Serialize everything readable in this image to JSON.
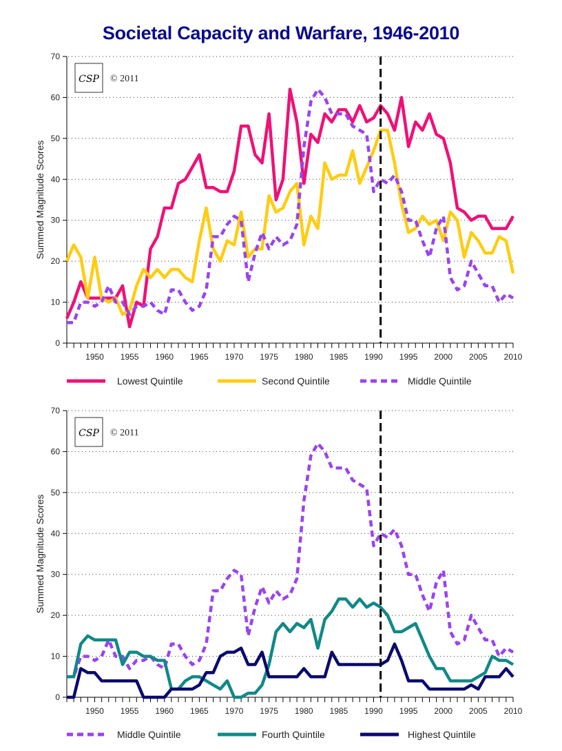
{
  "title": "Societal Capacity and Warfare, 1946-2010",
  "chart_data": [
    {
      "type": "line",
      "title": "Societal Capacity and Warfare, 1946-2010",
      "xlabel": "",
      "ylabel": "Summed Magnitude Scores",
      "xlim": [
        1946,
        2010
      ],
      "ylim": [
        0,
        70
      ],
      "yticks": [
        0,
        10,
        20,
        30,
        40,
        50,
        60,
        70
      ],
      "xticks": [
        1950,
        1955,
        1960,
        1965,
        1970,
        1975,
        1980,
        1985,
        1990,
        1995,
        2000,
        2005,
        2010
      ],
      "grid": "horizontal-dotted",
      "reference_line": {
        "x": 1991,
        "style": "dashed",
        "color": "#000000"
      },
      "legend_position": "bottom",
      "annotation": "© 2011",
      "logo": "CSP",
      "x_start": 1946,
      "series": [
        {
          "name": "Lowest Quintile",
          "color": "#ee1177",
          "style": "solid",
          "values": [
            6,
            10,
            15,
            11,
            11,
            11,
            11,
            11,
            14,
            4,
            10,
            9,
            23,
            26,
            33,
            33,
            39,
            40,
            43,
            46,
            38,
            38,
            37,
            37,
            42,
            53,
            53,
            46,
            44,
            56,
            35,
            40,
            62,
            54,
            39,
            51,
            49,
            56,
            54,
            57,
            57,
            54,
            58,
            54,
            55,
            58,
            56,
            52,
            60,
            48,
            54,
            52,
            56,
            51,
            50,
            44,
            33,
            32,
            30,
            31,
            31,
            28,
            28,
            28,
            31
          ]
        },
        {
          "name": "Second Quintile",
          "color": "#ffcc11",
          "style": "solid",
          "values": [
            20,
            24,
            21,
            11,
            21,
            11,
            10,
            11,
            7,
            8,
            14,
            18,
            16,
            18,
            16,
            18,
            18,
            16,
            15,
            25,
            33,
            23,
            20,
            25,
            24,
            32,
            21,
            23,
            23,
            36,
            32,
            33,
            37,
            39,
            24,
            31,
            28,
            44,
            40,
            41,
            41,
            47,
            39,
            43,
            47,
            52,
            52,
            44,
            34,
            27,
            28,
            31,
            29,
            30,
            25,
            32,
            30,
            21,
            27,
            25,
            22,
            22,
            26,
            25,
            17
          ]
        },
        {
          "name": "Middle Quintile",
          "color": "#9944ee",
          "style": "dashed",
          "values": [
            5,
            5,
            10,
            10,
            9,
            10,
            14,
            10,
            10,
            7,
            9,
            9,
            10,
            8,
            7,
            13,
            13,
            10,
            8,
            9,
            13,
            26,
            26,
            29,
            31,
            30,
            15,
            22,
            27,
            23,
            26,
            24,
            25,
            29,
            48,
            59,
            62,
            60,
            56,
            56,
            56,
            53,
            52,
            51,
            37,
            40,
            39,
            41,
            37,
            30,
            30,
            25,
            21,
            28,
            31,
            16,
            13,
            14,
            20,
            17,
            14,
            14,
            10,
            12,
            11
          ]
        }
      ]
    },
    {
      "type": "line",
      "title": "",
      "xlabel": "",
      "ylabel": "Summed Magnitude Scores",
      "xlim": [
        1946,
        2010
      ],
      "ylim": [
        0,
        70
      ],
      "yticks": [
        0,
        10,
        20,
        30,
        40,
        50,
        60,
        70
      ],
      "xticks": [
        1950,
        1955,
        1960,
        1965,
        1970,
        1975,
        1980,
        1985,
        1990,
        1995,
        2000,
        2005,
        2010
      ],
      "grid": "horizontal-dotted",
      "reference_line": {
        "x": 1991,
        "style": "dashed",
        "color": "#000000"
      },
      "legend_position": "bottom",
      "annotation": "© 2011",
      "logo": "CSP",
      "x_start": 1946,
      "series": [
        {
          "name": "Middle Quintile",
          "color": "#9944ee",
          "style": "dashed",
          "values": [
            5,
            5,
            10,
            10,
            9,
            10,
            14,
            10,
            10,
            7,
            9,
            9,
            10,
            8,
            7,
            13,
            13,
            10,
            8,
            9,
            13,
            26,
            26,
            29,
            31,
            30,
            15,
            22,
            27,
            23,
            26,
            24,
            25,
            29,
            48,
            59,
            62,
            60,
            56,
            56,
            56,
            53,
            52,
            51,
            37,
            40,
            39,
            41,
            37,
            30,
            30,
            25,
            21,
            28,
            31,
            16,
            13,
            14,
            20,
            17,
            14,
            14,
            10,
            12,
            11
          ]
        },
        {
          "name": "Fourth Quintile",
          "color": "#118888",
          "style": "solid",
          "values": [
            5,
            5,
            13,
            15,
            14,
            14,
            14,
            14,
            8,
            11,
            11,
            10,
            10,
            9,
            9,
            2,
            2,
            4,
            5,
            5,
            4,
            3,
            2,
            4,
            0,
            0,
            1,
            1,
            3,
            8,
            16,
            18,
            16,
            18,
            17,
            19,
            12,
            19,
            21,
            24,
            24,
            22,
            24,
            22,
            23,
            22,
            20,
            16,
            16,
            17,
            18,
            14,
            10,
            7,
            7,
            4,
            4,
            4,
            4,
            5,
            6,
            10,
            9,
            9,
            8
          ]
        },
        {
          "name": "Highest Quintile",
          "color": "#0a0a6e",
          "style": "solid",
          "values": [
            0,
            0,
            7,
            6,
            6,
            4,
            4,
            4,
            4,
            4,
            4,
            0,
            0,
            0,
            0,
            2,
            2,
            2,
            2,
            3,
            6,
            6,
            10,
            11,
            11,
            12,
            8,
            8,
            11,
            5,
            5,
            5,
            5,
            5,
            7,
            5,
            5,
            5,
            11,
            8,
            8,
            8,
            8,
            8,
            8,
            8,
            9,
            13,
            9,
            4,
            4,
            4,
            2,
            2,
            2,
            2,
            2,
            2,
            3,
            2,
            5,
            5,
            5,
            7,
            5
          ]
        }
      ]
    }
  ]
}
